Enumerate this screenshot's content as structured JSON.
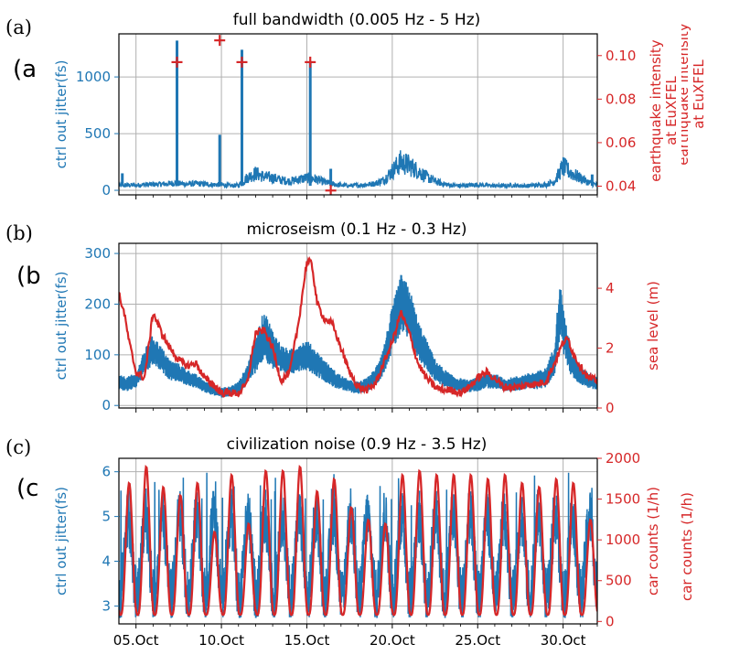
{
  "colors": {
    "blue": "#1f77b4",
    "red": "#d62728",
    "grid": "#b0b0b0",
    "axis": "#000000"
  },
  "x_tick_labels": [
    "05.Oct",
    "10.Oct",
    "15.Oct",
    "20.Oct",
    "25.Oct",
    "30.Oct"
  ],
  "panels": [
    {
      "letter": "(a)",
      "ghost_letter": "(a",
      "title": "full bandwidth (0.005 Hz - 5 Hz)"
    },
    {
      "letter": "(b)",
      "ghost_letter": "(b",
      "title": "microseism (0.1 Hz - 0.3 Hz)"
    },
    {
      "letter": "(c)",
      "ghost_letter": "(c",
      "title": "civilization noise (0.9 Hz - 3.5 Hz)"
    }
  ],
  "chart_data": [
    {
      "type": "line",
      "title": "full bandwidth (0.005 Hz - 5 Hz)",
      "xlim": [
        "04.Oct",
        "32.Oct"
      ],
      "x_ticks": [
        "05.Oct",
        "10.Oct",
        "15.Oct",
        "20.Oct",
        "25.Oct",
        "30.Oct"
      ],
      "grid": true,
      "left_axis": {
        "label": "ctrl out jitter(fs)",
        "ylim": [
          -40,
          1380
        ],
        "ticks": [
          0,
          500,
          1000
        ]
      },
      "right_axis": {
        "label_lines": [
          "earthquake intensity",
          "at EuXFEL"
        ],
        "ghost_lines": [
          "earthquake intensity",
          "at EuXFEL"
        ],
        "ylim": [
          0.036,
          0.11
        ],
        "ticks": [
          0.04,
          0.06,
          0.08,
          0.1
        ]
      },
      "series": [
        {
          "axis": "left",
          "style": "line",
          "color": "#1f77b4",
          "x": [
            4.0,
            4.5,
            5.0,
            5.5,
            6.0,
            6.5,
            7.0,
            7.3,
            7.5,
            8.0,
            8.5,
            9.0,
            9.5,
            10.0,
            10.5,
            11.0,
            11.5,
            12.0,
            12.5,
            13.0,
            13.5,
            14.0,
            14.5,
            15.0,
            15.5,
            16.0,
            16.5,
            17.0,
            17.5,
            18.0,
            18.5,
            19.0,
            19.5,
            20.0,
            20.5,
            21.0,
            21.5,
            22.0,
            22.5,
            23.0,
            23.5,
            24.0,
            24.5,
            25.0,
            25.5,
            26.0,
            26.5,
            27.0,
            27.5,
            28.0,
            28.5,
            29.0,
            29.5,
            30.0,
            30.5,
            31.0,
            31.5,
            32.0
          ],
          "y": [
            40,
            45,
            45,
            50,
            50,
            55,
            60,
            65,
            60,
            55,
            60,
            55,
            50,
            50,
            40,
            45,
            110,
            150,
            120,
            110,
            90,
            80,
            95,
            110,
            100,
            75,
            55,
            45,
            40,
            45,
            50,
            60,
            90,
            170,
            250,
            220,
            170,
            120,
            80,
            55,
            45,
            40,
            45,
            50,
            45,
            40,
            40,
            45,
            40,
            40,
            45,
            50,
            80,
            210,
            150,
            110,
            70,
            45
          ]
        },
        {
          "axis": "left",
          "style": "spike",
          "color": "#1f77b4",
          "x": [
            4.2,
            7.4,
            9.9,
            11.2,
            15.2,
            16.4,
            31.7
          ],
          "y": [
            150,
            1320,
            490,
            1240,
            1140,
            190,
            140
          ]
        },
        {
          "axis": "right",
          "style": "marker",
          "marker": "+",
          "color": "#d62728",
          "x": [
            7.4,
            9.9,
            11.2,
            15.2,
            16.4
          ],
          "y": [
            0.097,
            0.107,
            0.097,
            0.097,
            0.038
          ]
        }
      ]
    },
    {
      "type": "line",
      "title": "microseism (0.1 Hz - 0.3 Hz)",
      "xlim": [
        "04.Oct",
        "32.Oct"
      ],
      "x_ticks": [
        "05.Oct",
        "10.Oct",
        "15.Oct",
        "20.Oct",
        "25.Oct",
        "30.Oct"
      ],
      "grid": true,
      "left_axis": {
        "label": "ctrl out jitter(fs)",
        "ylim": [
          -5,
          320
        ],
        "ticks": [
          0,
          100,
          200,
          300
        ]
      },
      "right_axis": {
        "label": "sea level (m)",
        "ylim": [
          0,
          5.5
        ],
        "ticks": [
          0,
          2,
          4
        ]
      },
      "series": [
        {
          "axis": "left",
          "style": "band",
          "color": "#1f77b4",
          "x": [
            4.0,
            4.5,
            5.0,
            5.5,
            6.0,
            6.5,
            7.0,
            7.5,
            8.0,
            8.5,
            9.0,
            9.5,
            10.0,
            10.5,
            11.0,
            11.5,
            12.0,
            12.5,
            13.0,
            13.5,
            14.0,
            14.5,
            15.0,
            15.5,
            16.0,
            16.5,
            17.0,
            17.5,
            18.0,
            18.5,
            19.0,
            19.5,
            20.0,
            20.5,
            21.0,
            21.5,
            22.0,
            22.5,
            23.0,
            23.5,
            24.0,
            24.5,
            25.0,
            25.5,
            26.0,
            26.5,
            27.0,
            27.5,
            28.0,
            28.5,
            29.0,
            29.5,
            29.8,
            30.0,
            30.5,
            31.0,
            31.5,
            32.0
          ],
          "y": [
            45,
            42,
            50,
            85,
            110,
            90,
            70,
            65,
            55,
            48,
            38,
            30,
            25,
            28,
            35,
            60,
            100,
            140,
            110,
            90,
            85,
            95,
            100,
            85,
            70,
            55,
            45,
            38,
            35,
            40,
            55,
            90,
            150,
            200,
            180,
            130,
            100,
            70,
            55,
            45,
            40,
            38,
            42,
            50,
            48,
            40,
            42,
            45,
            48,
            50,
            55,
            90,
            190,
            150,
            80,
            60,
            50,
            45
          ],
          "amp": [
            15,
            15,
            15,
            25,
            30,
            25,
            20,
            18,
            16,
            14,
            12,
            10,
            10,
            10,
            12,
            20,
            35,
            50,
            40,
            30,
            25,
            28,
            30,
            26,
            22,
            18,
            15,
            12,
            12,
            14,
            18,
            28,
            45,
            60,
            55,
            40,
            30,
            22,
            18,
            15,
            14,
            12,
            14,
            16,
            16,
            14,
            14,
            15,
            16,
            18,
            20,
            30,
            60,
            45,
            25,
            18,
            16,
            15
          ]
        },
        {
          "axis": "right",
          "style": "line",
          "color": "#d62728",
          "x": [
            4.0,
            4.3,
            4.6,
            5.0,
            5.5,
            6.0,
            6.5,
            7.0,
            7.5,
            8.0,
            8.5,
            9.0,
            9.5,
            10.0,
            10.5,
            11.0,
            11.5,
            12.0,
            12.5,
            13.0,
            13.5,
            14.0,
            14.5,
            15.0,
            15.3,
            15.6,
            16.0,
            16.5,
            17.0,
            17.5,
            18.0,
            18.5,
            19.0,
            19.5,
            20.0,
            20.5,
            21.0,
            21.5,
            22.0,
            22.5,
            23.0,
            23.5,
            24.0,
            24.5,
            25.0,
            25.5,
            26.0,
            26.5,
            27.0,
            27.5,
            28.0,
            28.5,
            29.0,
            29.5,
            30.0,
            30.3,
            30.6,
            31.0,
            31.5,
            32.0
          ],
          "y": [
            3.8,
            3.2,
            2.2,
            1.2,
            1.0,
            3.2,
            2.5,
            2.0,
            1.6,
            1.4,
            1.5,
            1.0,
            0.8,
            0.5,
            0.5,
            0.5,
            0.8,
            2.5,
            2.6,
            2.0,
            0.9,
            1.2,
            2.8,
            4.9,
            4.8,
            3.5,
            3.0,
            2.8,
            2.0,
            1.2,
            0.7,
            0.6,
            0.8,
            1.5,
            2.2,
            3.2,
            2.5,
            1.5,
            1.0,
            0.7,
            0.6,
            0.6,
            0.5,
            0.7,
            1.0,
            1.2,
            1.0,
            0.7,
            0.7,
            0.7,
            0.8,
            0.8,
            0.9,
            1.5,
            2.2,
            2.3,
            1.8,
            1.4,
            1.0,
            0.9
          ]
        }
      ]
    },
    {
      "type": "line",
      "title": "civilization noise (0.9 Hz - 3.5 Hz)",
      "xlim": [
        "04.Oct",
        "32.Oct"
      ],
      "x_ticks": [
        "05.Oct",
        "10.Oct",
        "15.Oct",
        "20.Oct",
        "25.Oct",
        "30.Oct"
      ],
      "grid": true,
      "left_axis": {
        "label": "ctrl out jitter(fs)",
        "ylim": [
          2.6,
          6.3
        ],
        "ticks": [
          3,
          4,
          5,
          6
        ]
      },
      "right_axis": {
        "label": "car counts (1/h)",
        "ghost_label": "car counts (1/h)",
        "ylim": [
          -30,
          2000
        ],
        "ticks": [
          0,
          500,
          1000,
          1500,
          2000
        ]
      },
      "series": [
        {
          "axis": "left",
          "style": "daily-oscillation",
          "color": "#1f77b4",
          "days_start": 4,
          "days_end": 32,
          "y_low": 3.2,
          "y_high": 5.0,
          "y_max": 6.0
        },
        {
          "axis": "right",
          "style": "daily-oscillation",
          "color": "#d62728",
          "day_peaks": [
            1700,
            1900,
            1650,
            1550,
            1700,
            1100,
            1800,
            1200,
            1850,
            1850,
            1900,
            1600,
            1750,
            1400,
            1250,
            1200,
            1800,
            1850,
            1800,
            1800,
            1800,
            1750,
            1800,
            1700,
            1650,
            1750,
            1700,
            1250
          ],
          "night_value": 80
        }
      ]
    }
  ]
}
